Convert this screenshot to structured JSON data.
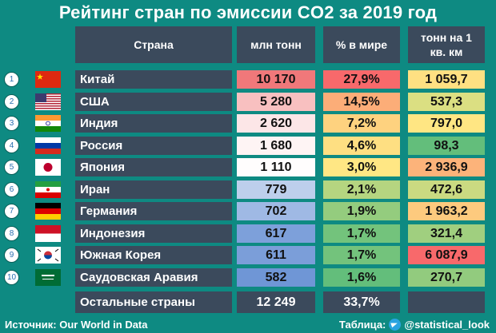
{
  "title": "Рейтинг стран по эмиссии CO2 за 2019 год",
  "headers": {
    "country": "Страна",
    "mt": "млн тонн",
    "share": "% в мире",
    "per_km_line1": "тонн на 1",
    "per_km_line2": "кв. км"
  },
  "colors": {
    "background": "#0e8a82",
    "header_bg": "#3b4a5c",
    "scale_high": "#f0787a",
    "scale_mid": "#ffffff",
    "scale_low": "#6f96d6",
    "scale_green": "#63be7b",
    "scale_yellow": "#ffe984",
    "scale_red": "#f8696b"
  },
  "chart_data": {
    "type": "table",
    "title": "Рейтинг стран по эмиссии CO2 за 2019 год",
    "columns": [
      "Страна",
      "млн тонн",
      "% в мире",
      "тонн на 1 кв. км"
    ],
    "rows": [
      {
        "rank": "1",
        "flag": "china-flag",
        "country": "Китай",
        "mt": "10 170",
        "share": "27,9%",
        "per_km": "1 059,7"
      },
      {
        "rank": "2",
        "flag": "usa-flag",
        "country": "США",
        "mt": "5 280",
        "share": "14,5%",
        "per_km": "537,3"
      },
      {
        "rank": "3",
        "flag": "india-flag",
        "country": "Индия",
        "mt": "2 620",
        "share": "7,2%",
        "per_km": "797,0"
      },
      {
        "rank": "4",
        "flag": "russia-flag",
        "country": "Россия",
        "mt": "1 680",
        "share": "4,6%",
        "per_km": "98,3"
      },
      {
        "rank": "5",
        "flag": "japan-flag",
        "country": "Япония",
        "mt": "1 110",
        "share": "3,0%",
        "per_km": "2 936,9"
      },
      {
        "rank": "6",
        "flag": "iran-flag",
        "country": "Иран",
        "mt": "779",
        "share": "2,1%",
        "per_km": "472,6"
      },
      {
        "rank": "7",
        "flag": "germany-flag",
        "country": "Германия",
        "mt": "702",
        "share": "1,9%",
        "per_km": "1 963,2"
      },
      {
        "rank": "8",
        "flag": "indonesia-flag",
        "country": "Индонезия",
        "mt": "617",
        "share": "1,7%",
        "per_km": "321,4"
      },
      {
        "rank": "9",
        "flag": "south-korea-flag",
        "country": "Южная Корея",
        "mt": "611",
        "share": "1,7%",
        "per_km": "6 087,9"
      },
      {
        "rank": "10",
        "flag": "saudi-arabia-flag",
        "country": "Саудовская Аравия",
        "mt": "582",
        "share": "1,6%",
        "per_km": "270,7"
      }
    ],
    "values_mt": [
      10170,
      5280,
      2620,
      1680,
      1110,
      779,
      702,
      617,
      611,
      582
    ],
    "values_share": [
      27.9,
      14.5,
      7.2,
      4.6,
      3.0,
      2.1,
      1.9,
      1.7,
      1.7,
      1.6
    ],
    "values_per_km": [
      1059.7,
      537.3,
      797.0,
      98.3,
      2936.9,
      472.6,
      1963.2,
      321.4,
      6087.9,
      270.7
    ],
    "other": {
      "country": "Остальные страны",
      "mt": "12 249",
      "share": "33,7%",
      "per_km": ""
    }
  },
  "footer": {
    "source": "Источник: Our World in Data",
    "table_label": "Таблица:",
    "handle": "@statistical_look",
    "telegram_icon": "telegram-icon"
  }
}
